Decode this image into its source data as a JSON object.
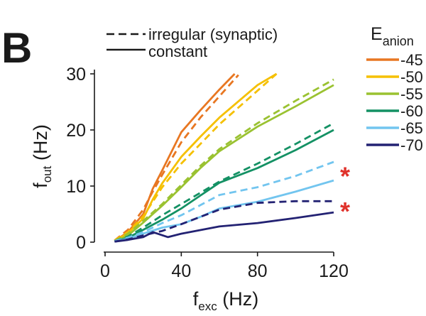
{
  "panel_label": "B",
  "chart_data": {
    "type": "line",
    "title": "",
    "xlabel": {
      "main": "f",
      "sub": "exc",
      "unit": " (Hz)"
    },
    "ylabel": {
      "main": "f",
      "sub": "out",
      "unit": " (Hz)"
    },
    "xlim": [
      0,
      120
    ],
    "ylim": [
      0,
      30
    ],
    "xticks": [
      0,
      40,
      80,
      120
    ],
    "yticks": [
      0,
      10,
      20,
      30
    ],
    "grid": false,
    "style_legend": [
      {
        "label": "irregular (synaptic)",
        "dash": true
      },
      {
        "label": "constant",
        "dash": false
      }
    ],
    "color_legend_title": {
      "main": "E",
      "sub": "anion"
    },
    "series": [
      {
        "name": "-45",
        "color": "#e87722",
        "constant": {
          "x": [
            5,
            12,
            20,
            25,
            30,
            40,
            50,
            60,
            68
          ],
          "y": [
            0.2,
            1.8,
            5.0,
            9.5,
            12.8,
            19.6,
            23.5,
            27.2,
            30.0
          ]
        },
        "irregular": {
          "x": [
            5,
            12,
            20,
            25,
            30,
            40,
            50,
            60,
            70
          ],
          "y": [
            0.3,
            2.2,
            5.8,
            9.0,
            12.0,
            17.8,
            22.2,
            26.0,
            29.8
          ]
        }
      },
      {
        "name": "-50",
        "color": "#f5c000",
        "constant": {
          "x": [
            5,
            12,
            20,
            25,
            30,
            40,
            50,
            60,
            80,
            90
          ],
          "y": [
            0.2,
            1.6,
            4.2,
            7.6,
            10.5,
            15.2,
            18.8,
            22.2,
            28.0,
            30.0
          ]
        },
        "irregular": {
          "x": [
            5,
            12,
            20,
            25,
            30,
            40,
            50,
            60,
            80,
            90
          ],
          "y": [
            0.3,
            1.8,
            4.6,
            7.2,
            9.8,
            14.0,
            17.5,
            21.0,
            27.0,
            30.0
          ]
        }
      },
      {
        "name": "-55",
        "color": "#9ac231",
        "constant": {
          "x": [
            5,
            12,
            20,
            30,
            40,
            50,
            60,
            80,
            100,
            120
          ],
          "y": [
            0.1,
            1.2,
            3.5,
            6.5,
            9.8,
            13.2,
            16.2,
            20.6,
            24.2,
            28.0
          ]
        },
        "irregular": {
          "x": [
            5,
            12,
            20,
            30,
            40,
            50,
            60,
            80,
            100,
            120
          ],
          "y": [
            0.2,
            1.5,
            3.8,
            6.8,
            10.2,
            13.6,
            16.6,
            21.2,
            25.2,
            29.0
          ]
        }
      },
      {
        "name": "-60",
        "color": "#149164",
        "constant": {
          "x": [
            5,
            12,
            20,
            30,
            40,
            50,
            60,
            80,
            100,
            120
          ],
          "y": [
            0.1,
            0.8,
            2.2,
            4.0,
            6.0,
            8.3,
            10.6,
            13.2,
            16.4,
            20.0
          ]
        },
        "irregular": {
          "x": [
            5,
            12,
            20,
            30,
            40,
            50,
            60,
            80,
            100,
            120
          ],
          "y": [
            0.2,
            1.0,
            2.6,
            4.8,
            6.8,
            8.8,
            10.8,
            14.0,
            17.5,
            21.2
          ]
        }
      },
      {
        "name": "-65",
        "color": "#72c5ef",
        "constant": {
          "x": [
            5,
            12,
            20,
            30,
            40,
            50,
            60,
            80,
            100,
            120
          ],
          "y": [
            0.1,
            0.6,
            1.5,
            2.6,
            3.2,
            4.5,
            6.0,
            7.2,
            9.0,
            11.0
          ]
        },
        "irregular": {
          "x": [
            5,
            12,
            20,
            30,
            40,
            50,
            60,
            80,
            100,
            120
          ],
          "y": [
            0.2,
            0.8,
            1.8,
            3.4,
            4.8,
            6.6,
            8.4,
            9.8,
            11.8,
            14.3
          ]
        }
      },
      {
        "name": "-70",
        "color": "#232273",
        "constant": {
          "x": [
            5,
            12,
            20,
            25,
            33,
            40,
            60,
            80,
            100,
            120
          ],
          "y": [
            0.1,
            0.4,
            0.9,
            1.8,
            0.9,
            1.5,
            2.8,
            3.4,
            4.3,
            5.3
          ]
        },
        "irregular": {
          "x": [
            5,
            12,
            20,
            30,
            40,
            60,
            80,
            100,
            120
          ],
          "y": [
            0.1,
            0.5,
            1.2,
            2.0,
            3.2,
            5.8,
            7.0,
            7.3,
            7.3
          ]
        }
      }
    ],
    "annotations": [
      {
        "text": "*",
        "color": "#e0322b",
        "near_series": "-65",
        "y": 12.5
      },
      {
        "text": "*",
        "color": "#e0322b",
        "near_series": "-70",
        "y": 6.2
      }
    ]
  }
}
